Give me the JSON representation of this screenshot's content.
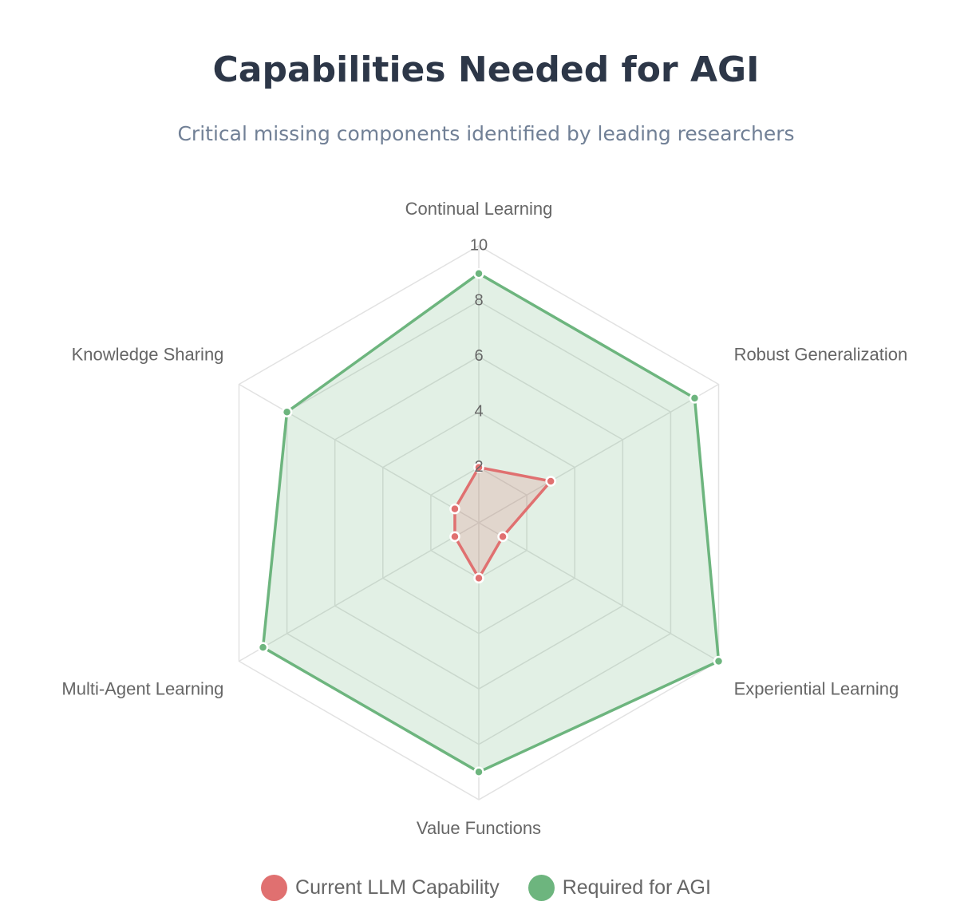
{
  "chart_data": {
    "type": "radar",
    "title": "Capabilities Needed for AGI",
    "subtitle": "Critical missing components identified by leading researchers",
    "axes": [
      "Continual Learning",
      "Robust Generalization",
      "Experiential Learning",
      "Value Functions",
      "Multi-Agent Learning",
      "Knowledge Sharing"
    ],
    "r_range": [
      0,
      10
    ],
    "ticks": [
      2,
      4,
      6,
      8,
      10
    ],
    "grid": true,
    "legend_position": "bottom",
    "series": [
      {
        "name": "Current LLM Capability",
        "values": [
          2,
          3,
          1,
          2,
          1,
          1
        ],
        "color": "#e07070",
        "fill": "rgba(224,112,112,0.2)"
      },
      {
        "name": "Required for AGI",
        "values": [
          9,
          9,
          10,
          9,
          9,
          8
        ],
        "color": "#6db57e",
        "fill": "rgba(109,181,126,0.2)"
      }
    ]
  }
}
